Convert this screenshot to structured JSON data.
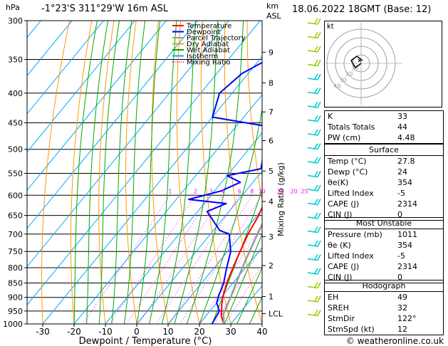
{
  "header": {
    "station": "-1°23'S  311°29'W  16m  ASL",
    "datetime": "18.06.2022  18GMT  (Base: 12)",
    "hpa_unit": "hPa",
    "km_unit": "km",
    "asl_unit": "ASL"
  },
  "legend": {
    "items": [
      {
        "label": "Temperature",
        "color": "#ff0000",
        "style": "solid"
      },
      {
        "label": "Dewpoint",
        "color": "#0000ff",
        "style": "solid"
      },
      {
        "label": "Parcel Trajectory",
        "color": "#999999",
        "style": "solid"
      },
      {
        "label": "Dry Adiabat",
        "color": "#ff9900",
        "style": "solid"
      },
      {
        "label": "Wet Adiabat",
        "color": "#00aa00",
        "style": "solid"
      },
      {
        "label": "Isotherm",
        "color": "#00aaff",
        "style": "solid"
      },
      {
        "label": "Mixing Ratio",
        "color": "#ff00ff",
        "style": "dotted"
      }
    ]
  },
  "chart_data": {
    "type": "line",
    "xlabel": "Dewpoint / Temperature (°C)",
    "ylabel_right": "Mixing Ratio (g/kg)",
    "xlim": [
      -35,
      40
    ],
    "pressure_range": [
      300,
      1000
    ],
    "x_ticks": [
      -30,
      -20,
      -10,
      0,
      10,
      20,
      30,
      40
    ],
    "pressure_ticks": [
      300,
      350,
      400,
      450,
      500,
      550,
      600,
      650,
      700,
      750,
      800,
      850,
      900,
      950,
      1000
    ],
    "km_ticks": [
      {
        "label": "9",
        "p": 340
      },
      {
        "label": "8",
        "p": 384
      },
      {
        "label": "7",
        "p": 431
      },
      {
        "label": "6",
        "p": 483
      },
      {
        "label": "5",
        "p": 545
      },
      {
        "label": "4",
        "p": 615
      },
      {
        "label": "3",
        "p": 707
      },
      {
        "label": "2",
        "p": 793
      },
      {
        "label": "1",
        "p": 897
      },
      {
        "label": "LCL",
        "p": 960
      }
    ],
    "mixing_ratio_labels": [
      "1",
      "2",
      "3",
      "4",
      "6",
      "8",
      "10",
      "15",
      "20",
      "25"
    ],
    "series": [
      {
        "name": "Temperature",
        "color": "#ff0000",
        "points": [
          [
            27.8,
            1000
          ],
          [
            25,
            970
          ],
          [
            22,
            925
          ],
          [
            20.5,
            900
          ],
          [
            18,
            850
          ],
          [
            16,
            800
          ],
          [
            14,
            750
          ],
          [
            12,
            700
          ],
          [
            10.5,
            650
          ],
          [
            8,
            600
          ],
          [
            5,
            550
          ],
          [
            2,
            500
          ],
          [
            -2,
            450
          ],
          [
            -6,
            400
          ],
          [
            -10,
            350
          ],
          [
            -16,
            300
          ]
        ]
      },
      {
        "name": "Dewpoint",
        "color": "#0000ff",
        "points": [
          [
            24,
            1000
          ],
          [
            23,
            950
          ],
          [
            20,
            920
          ],
          [
            19,
            900
          ],
          [
            17,
            850
          ],
          [
            14,
            800
          ],
          [
            11,
            750
          ],
          [
            6,
            700
          ],
          [
            2,
            690
          ],
          [
            -7,
            640
          ],
          [
            -3,
            620
          ],
          [
            -16,
            610
          ],
          [
            -8,
            590
          ],
          [
            -4,
            570
          ],
          [
            -10,
            555
          ],
          [
            -1,
            540
          ],
          [
            -5,
            500
          ],
          [
            -6,
            460
          ],
          [
            -30,
            440
          ],
          [
            -34,
            400
          ],
          [
            -32,
            370
          ],
          [
            -25,
            340
          ],
          [
            -18,
            310
          ],
          [
            -35,
            300
          ]
        ]
      },
      {
        "name": "Parcel Trajectory",
        "color": "#999999",
        "points": [
          [
            27.8,
            1000
          ],
          [
            25,
            960
          ],
          [
            23,
            900
          ],
          [
            21,
            850
          ],
          [
            19,
            800
          ],
          [
            17,
            750
          ],
          [
            15,
            700
          ],
          [
            13,
            650
          ],
          [
            11,
            600
          ],
          [
            9,
            550
          ],
          [
            6,
            500
          ],
          [
            3,
            450
          ],
          [
            0,
            400
          ],
          [
            -4,
            350
          ],
          [
            -10,
            300
          ]
        ]
      }
    ]
  },
  "hodograph": {
    "label": "kt",
    "ring_labels": [
      "10",
      "20",
      "30",
      "40"
    ]
  },
  "indices": {
    "rows": [
      {
        "label": "K",
        "value": "33"
      },
      {
        "label": "Totals Totals",
        "value": "44"
      },
      {
        "label": "PW (cm)",
        "value": "4.48"
      }
    ]
  },
  "surface": {
    "title": "Surface",
    "rows": [
      {
        "label": "Temp (°C)",
        "value": "27.8"
      },
      {
        "label": "Dewp (°C)",
        "value": "24"
      },
      {
        "label": "θe(K)",
        "value": "354"
      },
      {
        "label": "Lifted Index",
        "value": "-5"
      },
      {
        "label": "CAPE (J)",
        "value": "2314"
      },
      {
        "label": "CIN (J)",
        "value": "0"
      }
    ]
  },
  "most_unstable": {
    "title": "Most Unstable",
    "rows": [
      {
        "label": "Pressure (mb)",
        "value": "1011"
      },
      {
        "label": "θe (K)",
        "value": "354"
      },
      {
        "label": "Lifted Index",
        "value": "-5"
      },
      {
        "label": "CAPE (J)",
        "value": "2314"
      },
      {
        "label": "CIN (J)",
        "value": "0"
      }
    ]
  },
  "hodograph_table": {
    "title": "Hodograph",
    "rows": [
      {
        "label": "EH",
        "value": "49"
      },
      {
        "label": "SREH",
        "value": "32"
      },
      {
        "label": "StmDir",
        "value": "122°"
      },
      {
        "label": "StmSpd (kt)",
        "value": "12"
      }
    ]
  },
  "footer": {
    "copyright": "© weatheronline.co.uk"
  },
  "colors": {
    "temperature": "#ff0000",
    "dewpoint": "#0000ff",
    "parcel": "#999999",
    "dry_adiabat": "#ff9900",
    "wet_adiabat": "#00aa00",
    "isotherm": "#00aaff",
    "mixing_ratio": "#ff00ff",
    "wind_barb": "#00cccc"
  }
}
